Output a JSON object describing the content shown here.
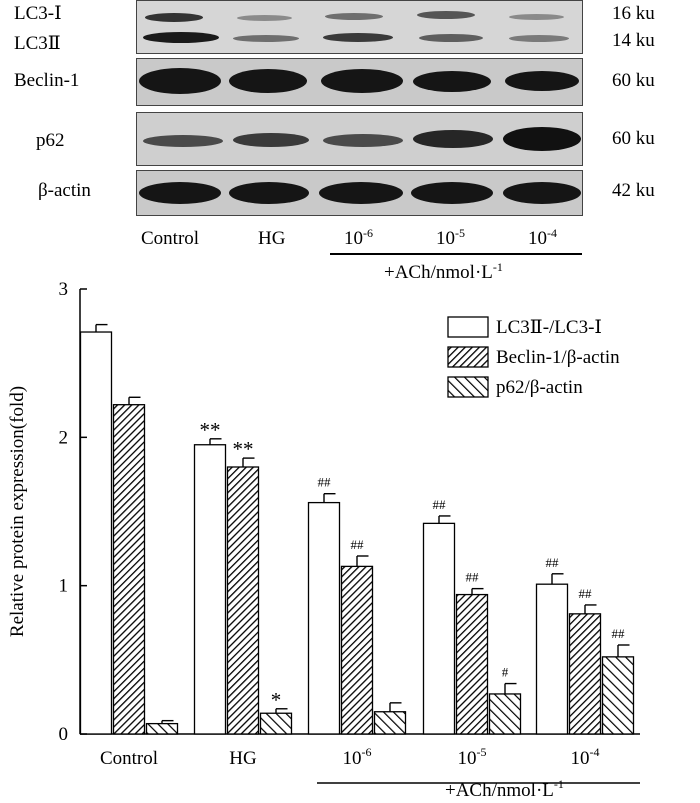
{
  "blot": {
    "rows": [
      {
        "label": "LC3-Ⅰ",
        "size": "16 ku"
      },
      {
        "label": "LC3Ⅱ",
        "size": "14 ku"
      },
      {
        "label": "Beclin-1",
        "size": "60 ku"
      },
      {
        "label": "p62",
        "size": "60 ku"
      },
      {
        "label": "β-actin",
        "size": "42 ku"
      }
    ],
    "lanes": [
      "Control",
      "HG",
      "10",
      "10",
      "10"
    ],
    "lane_exponents": [
      "",
      "",
      "-6",
      "-5",
      "-4"
    ],
    "ach_label": "+ACh/nmol·L",
    "ach_exponent": "-1"
  },
  "chart_data": {
    "type": "bar",
    "categories": [
      "Control",
      "HG",
      "10",
      "10",
      "10"
    ],
    "category_exponents": [
      "",
      "",
      "-6",
      "-5",
      "-4"
    ],
    "group_label": "+ACh/nmol·L",
    "group_label_exponent": "-1",
    "ylabel": "Relative protein expression(fold)",
    "ylim": [
      0,
      3
    ],
    "yticks": [
      "0",
      "1",
      "2",
      "3"
    ],
    "legend_position": "top-right",
    "series": [
      {
        "name": "LC3Ⅱ-/LC3-Ⅰ",
        "values": [
          2.71,
          1.95,
          1.56,
          1.42,
          1.01
        ],
        "errors": [
          0.05,
          0.04,
          0.06,
          0.05,
          0.07
        ],
        "marks": [
          "",
          "**",
          "##",
          "##",
          "##"
        ],
        "fill": "white"
      },
      {
        "name": "Beclin-1/β-actin",
        "values": [
          2.22,
          1.8,
          1.13,
          0.94,
          0.81
        ],
        "errors": [
          0.05,
          0.06,
          0.07,
          0.04,
          0.06
        ],
        "marks": [
          "",
          "**",
          "##",
          "##",
          "##"
        ],
        "fill": "hatch-dense"
      },
      {
        "name": "p62/β-actin",
        "values": [
          0.07,
          0.14,
          0.15,
          0.27,
          0.52
        ],
        "errors": [
          0.02,
          0.03,
          0.06,
          0.07,
          0.08
        ],
        "marks": [
          "",
          "*",
          "",
          "#",
          "##"
        ],
        "fill": "hatch-sparse"
      }
    ]
  }
}
